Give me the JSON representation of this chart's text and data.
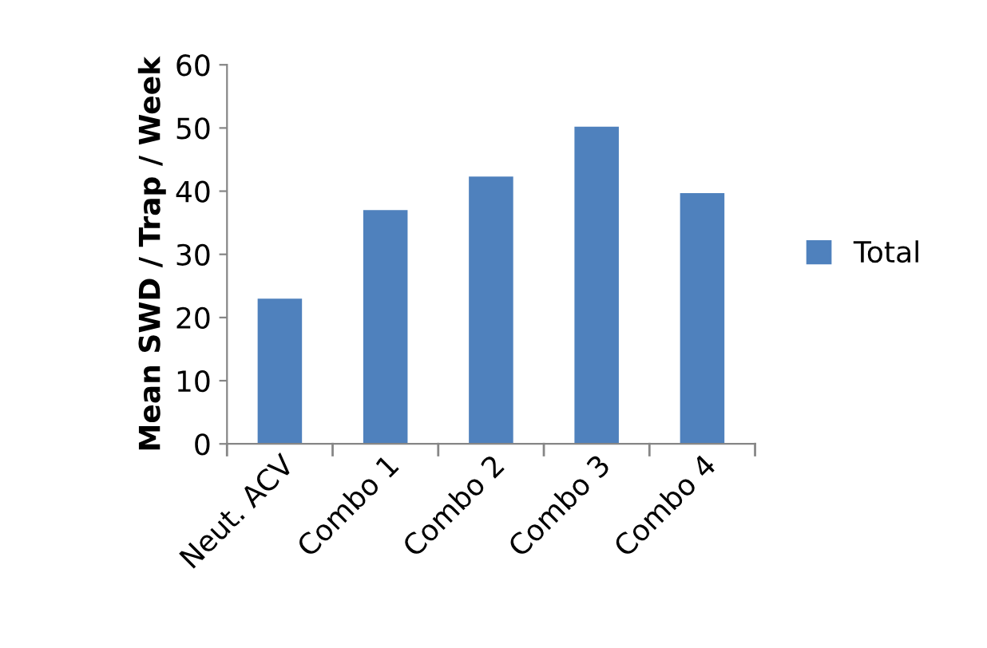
{
  "chart_data": {
    "type": "bar",
    "ylabel": "Mean SWD / Trap / Week",
    "categories": [
      "Neut. ACV",
      "Combo 1",
      "Combo 2",
      "Combo 3",
      "Combo 4"
    ],
    "series": [
      {
        "name": "Total",
        "color": "#4f81bd",
        "values": [
          23,
          37,
          42.3,
          50.2,
          39.7
        ]
      }
    ],
    "ylim": [
      0,
      60
    ],
    "yticks": [
      0,
      10,
      20,
      30,
      40,
      50,
      60
    ],
    "grid": false,
    "legend": "right"
  }
}
